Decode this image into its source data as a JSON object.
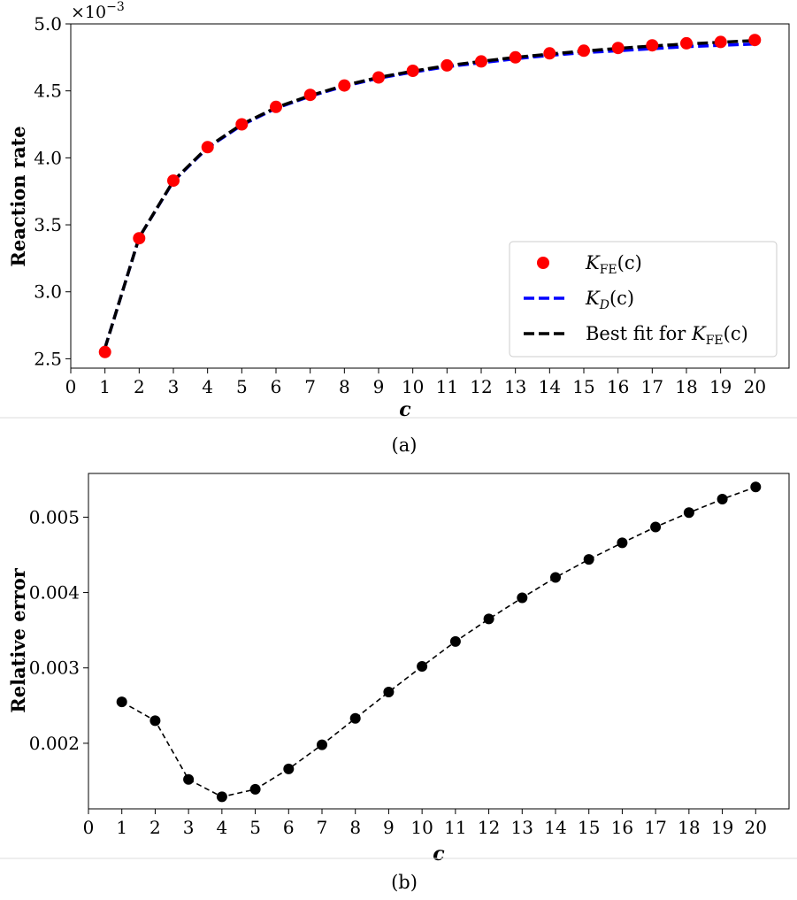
{
  "chart_data": [
    {
      "type": "line",
      "caption": "(a)",
      "xlabel": "c",
      "ylabel": "Reaction rate",
      "y_multiplier": "×10",
      "y_multiplier_exp": "−3",
      "xlim": [
        0,
        21
      ],
      "ylim": [
        2.43,
        5.0
      ],
      "x_ticks": [
        0,
        1,
        2,
        3,
        4,
        5,
        6,
        7,
        8,
        9,
        10,
        11,
        12,
        13,
        14,
        15,
        16,
        17,
        18,
        19,
        20
      ],
      "x_tick_labels": [
        "0",
        "1",
        "2",
        "3",
        "4",
        "5",
        "6",
        "7",
        "8",
        "9",
        "10",
        "11",
        "12",
        "13",
        "14",
        "15",
        "16",
        "17",
        "18",
        "19",
        "20"
      ],
      "y_ticks": [
        2.5,
        3.0,
        3.5,
        4.0,
        4.5,
        5.0
      ],
      "y_tick_labels": [
        "2.5",
        "3.0",
        "3.5",
        "4.0",
        "4.5",
        "5.0"
      ],
      "grid": false,
      "legend_position": "bottom-right",
      "x": [
        1,
        2,
        3,
        4,
        5,
        6,
        7,
        8,
        9,
        10,
        11,
        12,
        13,
        14,
        15,
        16,
        17,
        18,
        19,
        20
      ],
      "series": [
        {
          "legend_main": "K",
          "legend_sub": "FE",
          "legend_tail": "(c)",
          "style": "markers",
          "color": "#ff0000",
          "values": [
            2.55,
            3.4,
            3.83,
            4.08,
            4.25,
            4.38,
            4.47,
            4.54,
            4.6,
            4.65,
            4.69,
            4.72,
            4.75,
            4.78,
            4.8,
            4.82,
            4.84,
            4.855,
            4.865,
            4.88
          ]
        },
        {
          "legend_main": "K",
          "legend_sub": "D",
          "legend_tail": "(c)",
          "style": "dashed",
          "color": "#0000ff",
          "values": [
            2.58,
            3.405,
            3.825,
            4.075,
            4.245,
            4.37,
            4.46,
            4.535,
            4.595,
            4.64,
            4.68,
            4.71,
            4.74,
            4.765,
            4.785,
            4.8,
            4.815,
            4.83,
            4.84,
            4.85
          ]
        },
        {
          "legend_prefix": "Best fit for ",
          "legend_main": "K",
          "legend_sub": "FE",
          "legend_tail": "(c)",
          "style": "dashed",
          "color": "#000000",
          "values": [
            2.58,
            3.405,
            3.828,
            4.08,
            4.25,
            4.375,
            4.465,
            4.54,
            4.6,
            4.647,
            4.688,
            4.72,
            4.75,
            4.775,
            4.797,
            4.817,
            4.835,
            4.85,
            4.863,
            4.875
          ]
        }
      ]
    },
    {
      "type": "line",
      "caption": "(b)",
      "xlabel": "c",
      "ylabel": "Relative error",
      "xlim": [
        0,
        21
      ],
      "ylim": [
        0.00113,
        0.00558
      ],
      "x_ticks": [
        0,
        1,
        2,
        3,
        4,
        5,
        6,
        7,
        8,
        9,
        10,
        11,
        12,
        13,
        14,
        15,
        16,
        17,
        18,
        19,
        20
      ],
      "x_tick_labels": [
        "0",
        "1",
        "2",
        "3",
        "4",
        "5",
        "6",
        "7",
        "8",
        "9",
        "10",
        "11",
        "12",
        "13",
        "14",
        "15",
        "16",
        "17",
        "18",
        "19",
        "20"
      ],
      "y_ticks": [
        0.002,
        0.003,
        0.004,
        0.005
      ],
      "y_tick_labels": [
        "0.002",
        "0.003",
        "0.004",
        "0.005"
      ],
      "grid": false,
      "x": [
        1,
        2,
        3,
        4,
        5,
        6,
        7,
        8,
        9,
        10,
        11,
        12,
        13,
        14,
        15,
        16,
        17,
        18,
        19,
        20
      ],
      "series": [
        {
          "style": "markers+dashed",
          "color": "#000000",
          "values": [
            0.00255,
            0.0023,
            0.00152,
            0.00129,
            0.00139,
            0.00166,
            0.00198,
            0.00233,
            0.00268,
            0.00302,
            0.00335,
            0.00365,
            0.00393,
            0.0042,
            0.00444,
            0.00466,
            0.00487,
            0.00506,
            0.00524,
            0.0054
          ]
        }
      ]
    }
  ]
}
